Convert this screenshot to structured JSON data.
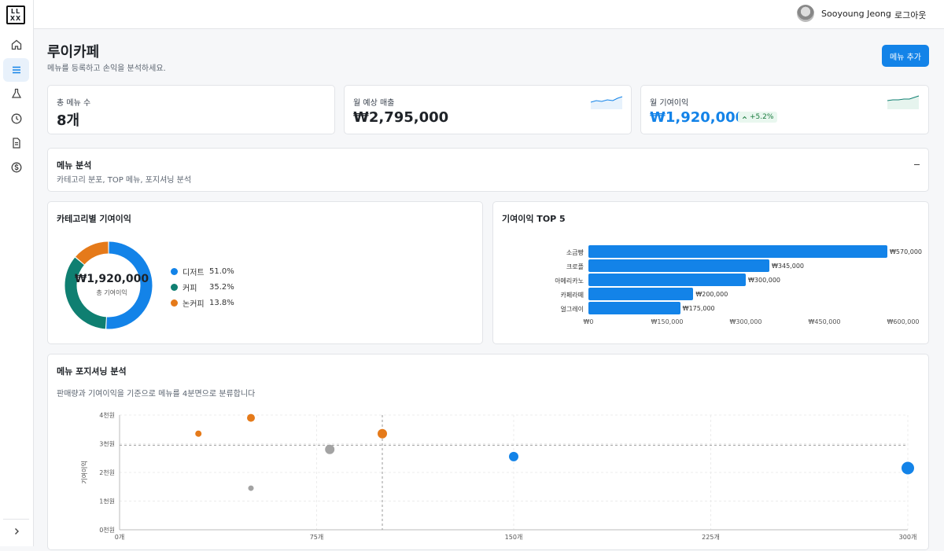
{
  "app": {
    "logo_text": "LL\nXX",
    "user": "Sooyoung Jeong",
    "logout": "로그아웃"
  },
  "sidebar": {
    "items": [
      {
        "icon": "home-icon"
      },
      {
        "icon": "menu-list-icon",
        "active": true
      },
      {
        "icon": "flask-icon"
      },
      {
        "icon": "clock-icon"
      },
      {
        "icon": "document-icon"
      },
      {
        "icon": "dollar-icon"
      }
    ],
    "collapse_icon": "chevron-right-icon"
  },
  "header": {
    "title": "루이카페",
    "subtitle": "메뉴를 등록하고 손익을 분석하세요.",
    "add_button": "메뉴 추가"
  },
  "stats": [
    {
      "label": "총 메뉴 수",
      "value": "8개"
    },
    {
      "label": "월 예상 매출",
      "value": "₩2,795,000"
    },
    {
      "label": "월 기여이익",
      "value": "₩1,920,000",
      "badge": "+5.2%"
    }
  ],
  "analysis": {
    "title": "메뉴 분석",
    "subtitle": "카테고리 분포, TOP 메뉴, 포지셔닝 분석",
    "collapse_symbol": "–"
  },
  "colors": {
    "accent": "#1383e8",
    "dessert": "#1383e8",
    "coffee": "#0f7f71",
    "noncoffee": "#e57a1a",
    "gray": "#a3a3a3"
  },
  "category_chart": {
    "title": "카테고리별 기여이익",
    "center_value": "₩1,920,000",
    "center_label": "총 기여이익",
    "legend": [
      {
        "name": "디저트",
        "pct": "51.0%",
        "value": 51.0
      },
      {
        "name": "커피",
        "pct": "35.2%",
        "value": 35.2
      },
      {
        "name": "논커피",
        "pct": "13.8%",
        "value": 13.8
      }
    ]
  },
  "top5": {
    "title": "기여이익 TOP 5",
    "max": 600000,
    "items": [
      {
        "name": "소금빵",
        "value": 570000,
        "label": "₩570,000"
      },
      {
        "name": "크로플",
        "value": 345000,
        "label": "₩345,000"
      },
      {
        "name": "아메리카노",
        "value": 300000,
        "label": "₩300,000"
      },
      {
        "name": "카페라떼",
        "value": 200000,
        "label": "₩200,000"
      },
      {
        "name": "얼그레이",
        "value": 175000,
        "label": "₩175,000"
      }
    ],
    "ticks": [
      {
        "value": 0,
        "label": "₩0"
      },
      {
        "value": 150000,
        "label": "₩150,000"
      },
      {
        "value": 300000,
        "label": "₩300,000"
      },
      {
        "value": 450000,
        "label": "₩450,000"
      },
      {
        "value": 600000,
        "label": "₩600,000"
      }
    ]
  },
  "positioning": {
    "title": "메뉴 포지셔닝 분석",
    "subtitle": "판매량과 기여이익을 기준으로 메뉴를 4분면으로 분류합니다",
    "ylabel": "기여이익",
    "y_ticks": [
      {
        "value": 0,
        "label": "0천원"
      },
      {
        "value": 1000,
        "label": "1천원"
      },
      {
        "value": 2000,
        "label": "2천원"
      },
      {
        "value": 3000,
        "label": "3천원"
      },
      {
        "value": 4000,
        "label": "4천원"
      }
    ],
    "x_ticks": [
      {
        "value": 0,
        "label": "0개"
      },
      {
        "value": 75,
        "label": "75개"
      },
      {
        "value": 150,
        "label": "150개"
      },
      {
        "value": 225,
        "label": "225개"
      },
      {
        "value": 300,
        "label": "300개"
      }
    ]
  },
  "chart_data": [
    {
      "type": "pie",
      "title": "카테고리별 기여이익",
      "categories": [
        "디저트",
        "커피",
        "논커피"
      ],
      "values": [
        51.0,
        35.2,
        13.8
      ]
    },
    {
      "type": "bar",
      "title": "기여이익 TOP 5",
      "categories": [
        "소금빵",
        "크로플",
        "아메리카노",
        "카페라떼",
        "얼그레이"
      ],
      "values": [
        570000,
        345000,
        300000,
        200000,
        175000
      ],
      "xlim": [
        0,
        600000
      ]
    },
    {
      "type": "scatter",
      "title": "메뉴 포지셔닝 분석",
      "ylabel": "기여이익",
      "xlim": [
        0,
        300
      ],
      "ylim": [
        0,
        4000
      ],
      "reference_lines": {
        "x": 100,
        "y": 2950
      },
      "points": [
        {
          "x": 30,
          "y": 3350,
          "category": "noncoffee",
          "r": 4
        },
        {
          "x": 50,
          "y": 3900,
          "category": "noncoffee",
          "r": 5
        },
        {
          "x": 100,
          "y": 3350,
          "category": "noncoffee",
          "r": 6
        },
        {
          "x": 80,
          "y": 2800,
          "category": "gray",
          "r": 6
        },
        {
          "x": 50,
          "y": 1450,
          "category": "gray",
          "r": 3.5
        },
        {
          "x": 150,
          "y": 2550,
          "category": "dessert",
          "r": 6
        },
        {
          "x": 300,
          "y": 2150,
          "category": "dessert",
          "r": 8
        }
      ]
    }
  ]
}
